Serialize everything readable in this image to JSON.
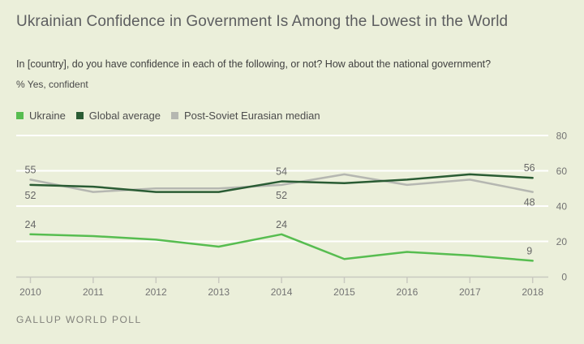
{
  "page": {
    "background": "#ebefda"
  },
  "header": {
    "title": "Ukrainian Confidence in Government Is Among the Lowest in the World",
    "subtitle": "In [country], do you have confidence in each of the following, or not? How about the national government?",
    "unit_label": "% Yes, confident"
  },
  "colors": {
    "ukraine": "#57bd50",
    "global_average": "#2a5c34",
    "post_soviet": "#b5b7b1",
    "gridline": "#ffffff",
    "axis": "#c9c9c0",
    "axis_text": "#737373",
    "data_label": "#666666"
  },
  "legend": [
    {
      "label": "Ukraine",
      "color": "#57bd50"
    },
    {
      "label": "Global average",
      "color": "#2a5c34"
    },
    {
      "label": "Post-Soviet Eurasian median",
      "color": "#b5b7b1"
    }
  ],
  "chart_data": {
    "type": "line",
    "title": "Ukrainian Confidence in Government Is Among the Lowest in the World",
    "xlabel": "",
    "ylabel": "% Yes, confident",
    "x": [
      2010,
      2011,
      2012,
      2013,
      2014,
      2015,
      2016,
      2017,
      2018
    ],
    "series": [
      {
        "name": "Ukraine",
        "color": "#57bd50",
        "values": [
          24,
          23,
          21,
          17,
          24,
          10,
          14,
          12,
          9
        ]
      },
      {
        "name": "Global average",
        "color": "#2a5c34",
        "values": [
          52,
          51,
          48,
          48,
          54,
          53,
          55,
          58,
          56
        ]
      },
      {
        "name": "Post-Soviet Eurasian median",
        "color": "#b5b7b1",
        "values": [
          55,
          48,
          50,
          50,
          52,
          58,
          52,
          55,
          48
        ]
      }
    ],
    "ylim": [
      0,
      80
    ],
    "yticks": [
      0,
      20,
      40,
      60,
      80
    ],
    "grid": true,
    "legend_position": "top-left",
    "point_labels": [
      {
        "series": "Post-Soviet Eurasian median",
        "year": 2010,
        "text": "55",
        "placement": "above"
      },
      {
        "series": "Global average",
        "year": 2010,
        "text": "52",
        "placement": "below"
      },
      {
        "series": "Ukraine",
        "year": 2010,
        "text": "24",
        "placement": "above"
      },
      {
        "series": "Global average",
        "year": 2014,
        "text": "54",
        "placement": "above"
      },
      {
        "series": "Post-Soviet Eurasian median",
        "year": 2014,
        "text": "52",
        "placement": "below"
      },
      {
        "series": "Ukraine",
        "year": 2014,
        "text": "24",
        "placement": "above"
      },
      {
        "series": "Global average",
        "year": 2018,
        "text": "56",
        "placement": "above"
      },
      {
        "series": "Post-Soviet Eurasian median",
        "year": 2018,
        "text": "48",
        "placement": "below"
      },
      {
        "series": "Ukraine",
        "year": 2018,
        "text": "9",
        "placement": "above"
      }
    ]
  },
  "footer": {
    "source": "GALLUP WORLD POLL"
  }
}
